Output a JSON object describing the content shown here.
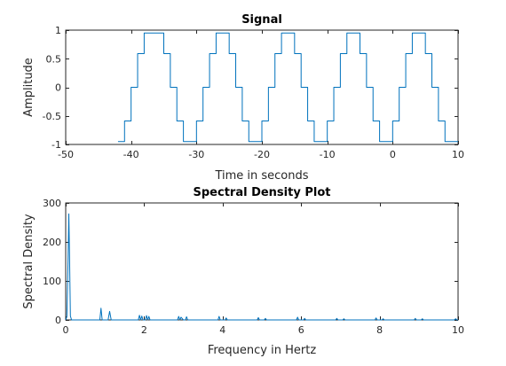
{
  "chart_data": [
    {
      "type": "line",
      "title": "Signal",
      "xlabel": "Time in seconds",
      "ylabel": "Amplitude",
      "xlim": [
        -50,
        10
      ],
      "ylim": [
        -1,
        1
      ],
      "xticks": [
        -50,
        -40,
        -30,
        -20,
        -10,
        0,
        10
      ],
      "xtick_labels": [
        "-50",
        "-40",
        "-30",
        "-20",
        "-10",
        "0",
        "10"
      ],
      "yticks": [
        -1,
        -0.5,
        0,
        0.5,
        1
      ],
      "ytick_labels": [
        "-1",
        "-0.5",
        "0",
        "0.5",
        "1"
      ],
      "color": "#0072bd",
      "series": [
        {
          "name": "signal",
          "x": [
            -42.0,
            -41.0,
            -41.0,
            -40.0,
            -40.0,
            -39.0,
            -39.0,
            -38.0,
            -38.0,
            -37.0,
            -37.0,
            -35.0,
            -35.0,
            -34.0,
            -34.0,
            -33.0,
            -33.0,
            -32.0,
            -32.0,
            -31.0,
            -31.0,
            -30.0,
            -30.0,
            -29.0,
            -29.0,
            -28.0,
            -28.0,
            -27.0,
            -27.0,
            -25.0,
            -25.0,
            -24.0,
            -24.0,
            -23.0,
            -23.0,
            -22.0,
            -22.0,
            -21.0,
            -21.0,
            -20.0,
            -20.0,
            -19.0,
            -19.0,
            -18.0,
            -18.0,
            -17.0,
            -17.0,
            -15.0,
            -15.0,
            -14.0,
            -14.0,
            -13.0,
            -13.0,
            -12.0,
            -12.0,
            -11.0,
            -11.0,
            -10.0,
            -10.0,
            -9.0,
            -9.0,
            -8.0,
            -8.0,
            -7.0,
            -7.0,
            -5.0,
            -5.0,
            -4.0,
            -4.0,
            -3.0,
            -3.0,
            -2.0,
            -2.0,
            -1.0,
            -1.0,
            0.0,
            0.0,
            1.0,
            1.0,
            2.0,
            2.0,
            3.0,
            3.0,
            5.0,
            5.0,
            6.0,
            6.0,
            7.0,
            7.0,
            8.0,
            8.0,
            10.0
          ],
          "y": [
            -0.95,
            -0.95,
            -0.59,
            -0.59,
            0.0,
            0.0,
            0.59,
            0.59,
            0.95,
            0.95,
            0.95,
            0.95,
            0.59,
            0.59,
            0.0,
            0.0,
            -0.59,
            -0.59,
            -0.95,
            -0.95,
            -0.95,
            -0.95,
            -0.59,
            -0.59,
            0.0,
            0.0,
            0.59,
            0.59,
            0.95,
            0.95,
            0.59,
            0.59,
            0.0,
            0.0,
            -0.59,
            -0.59,
            -0.95,
            -0.95,
            -0.95,
            -0.95,
            -0.59,
            -0.59,
            0.0,
            0.0,
            0.59,
            0.59,
            0.95,
            0.95,
            0.59,
            0.59,
            0.0,
            0.0,
            -0.59,
            -0.59,
            -0.95,
            -0.95,
            -0.95,
            -0.95,
            -0.59,
            -0.59,
            0.0,
            0.0,
            0.59,
            0.59,
            0.95,
            0.95,
            0.59,
            0.59,
            0.0,
            0.0,
            -0.59,
            -0.59,
            -0.95,
            -0.95,
            -0.95,
            -0.95,
            -0.59,
            -0.59,
            0.0,
            0.0,
            0.59,
            0.59,
            0.95,
            0.95,
            0.59,
            0.59,
            0.0,
            0.0,
            -0.59,
            -0.59,
            -0.95,
            -0.95
          ]
        }
      ]
    },
    {
      "type": "line",
      "title": "Spectral Density Plot",
      "xlabel": "Frequency in Hertz",
      "ylabel": "Spectral Density",
      "xlim": [
        0,
        10
      ],
      "ylim": [
        0,
        300
      ],
      "xticks": [
        0,
        2,
        4,
        6,
        8,
        10
      ],
      "xtick_labels": [
        "0",
        "2",
        "4",
        "6",
        "8",
        "10"
      ],
      "yticks": [
        0,
        100,
        200,
        300
      ],
      "ytick_labels": [
        "0",
        "100",
        "200",
        "300"
      ],
      "color": "#0072bd",
      "series": [
        {
          "name": "spectral-density",
          "x": [
            0.0,
            0.03,
            0.06,
            0.08,
            0.1,
            0.12,
            0.15,
            0.2,
            0.3,
            0.8,
            0.87,
            0.9,
            0.93,
            1.0,
            1.08,
            1.12,
            1.16,
            1.3,
            1.85,
            1.88,
            1.91,
            1.94,
            1.97,
            2.0,
            2.03,
            2.06,
            2.09,
            2.12,
            2.15,
            2.5,
            2.85,
            2.88,
            2.91,
            2.94,
            3.0,
            3.05,
            3.08,
            3.11,
            3.15,
            3.5,
            3.88,
            3.91,
            3.94,
            4.0,
            4.06,
            4.09,
            4.12,
            4.5,
            4.88,
            4.91,
            4.94,
            5.0,
            5.06,
            5.09,
            5.12,
            5.5,
            5.88,
            5.91,
            5.94,
            6.0,
            6.06,
            6.09,
            6.12,
            6.5,
            6.88,
            6.91,
            6.94,
            7.0,
            7.06,
            7.09,
            7.12,
            7.5,
            7.88,
            7.91,
            7.94,
            8.0,
            8.06,
            8.09,
            8.12,
            8.5,
            8.88,
            8.91,
            8.94,
            9.0,
            9.06,
            9.09,
            9.12,
            9.5,
            9.9,
            9.94,
            9.97,
            10.0
          ],
          "y": [
            0,
            8,
            150,
            272,
            150,
            10,
            0,
            0,
            0,
            0,
            0,
            30,
            0,
            0,
            0,
            22,
            0,
            0,
            0,
            12,
            0,
            10,
            0,
            0,
            0,
            11,
            0,
            9,
            0,
            0,
            0,
            9,
            0,
            7,
            0,
            0,
            8,
            0,
            0,
            0,
            0,
            9,
            0,
            0,
            0,
            5,
            0,
            0,
            0,
            6,
            0,
            0,
            0,
            4,
            0,
            0,
            0,
            7,
            0,
            0,
            0,
            4,
            0,
            0,
            0,
            4,
            0,
            0,
            0,
            3,
            0,
            0,
            0,
            5,
            0,
            0,
            0,
            3,
            0,
            0,
            0,
            4,
            0,
            0,
            0,
            3,
            0,
            0,
            0,
            3,
            0,
            0
          ]
        }
      ]
    }
  ]
}
